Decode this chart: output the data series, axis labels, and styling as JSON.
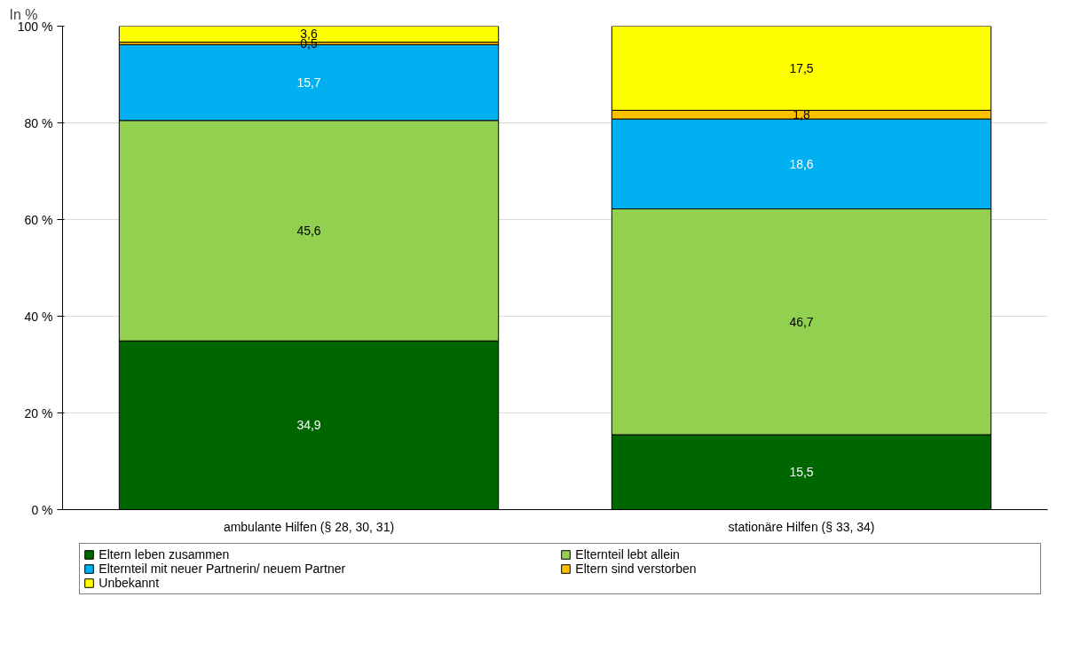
{
  "chart_data": {
    "type": "bar",
    "stacked": true,
    "ylabel": "In %",
    "categories": [
      "ambulante Hilfen (§ 28, 30, 31)",
      "stationäre Hilfen (§ 33, 34)"
    ],
    "series": [
      {
        "name": "Eltern leben zusammen",
        "color": "#006600",
        "values": [
          34.9,
          15.5
        ],
        "value_labels": [
          "34,9",
          "15,5"
        ]
      },
      {
        "name": "Elternteil lebt allein",
        "color": "#92d050",
        "values": [
          45.6,
          46.7
        ],
        "value_labels": [
          "45,6",
          "46,7"
        ]
      },
      {
        "name": "Elternteil mit neuer Partnerin/ neuem Partner",
        "color": "#00b0f0",
        "values": [
          15.7,
          18.6
        ],
        "value_labels": [
          "15,7",
          "18,6"
        ]
      },
      {
        "name": "Eltern sind verstorben",
        "color": "#ffc000",
        "values": [
          0.5,
          1.8
        ],
        "value_labels": [
          "0,5",
          "1,8"
        ]
      },
      {
        "name": "Unbekannt",
        "color": "#ffff00",
        "values": [
          3.6,
          17.5
        ],
        "value_labels": [
          "3,6",
          "17,5"
        ]
      }
    ],
    "ylim": [
      0,
      100
    ],
    "yticks": [
      {
        "value": 0,
        "label": "0 %"
      },
      {
        "value": 20,
        "label": "20 %"
      },
      {
        "value": 40,
        "label": "40 %"
      },
      {
        "value": 60,
        "label": "60 %"
      },
      {
        "value": 80,
        "label": "80 %"
      },
      {
        "value": 100,
        "label": "100 %"
      }
    ],
    "grid": "y",
    "legend": "bottom"
  }
}
